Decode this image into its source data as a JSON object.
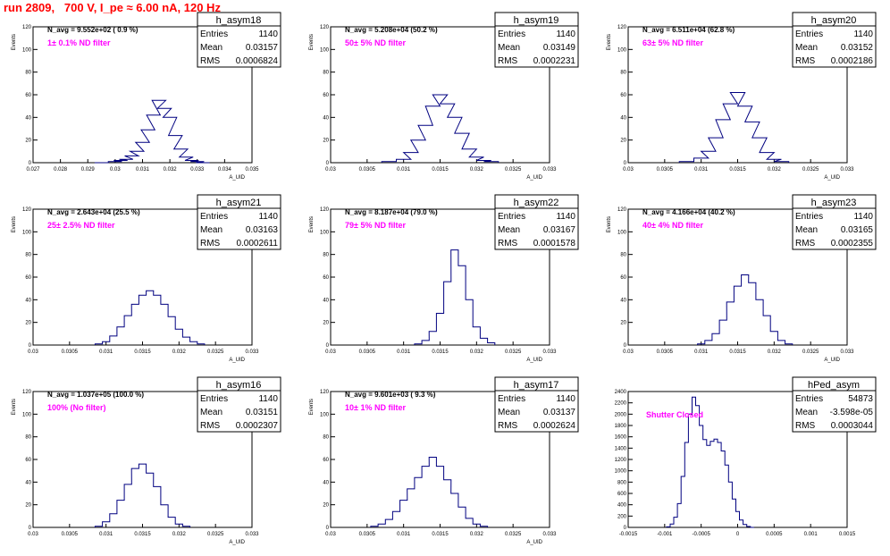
{
  "header": {
    "title": "run 2809,   700 V, I_pe ≈ 6.00 nA, 120 Hz"
  },
  "colors": {
    "title": "#ff0000",
    "histogram": "#000080",
    "annotation": "#ff00ff",
    "axis": "#000000"
  },
  "chart_data": [
    {
      "type": "histogram",
      "name": "h_asym18",
      "stats": {
        "entries_label": "Entries",
        "entries": "1140",
        "mean_label": "Mean",
        "mean": "0.03157",
        "rms_label": "RMS",
        "rms": "0.0006824"
      },
      "navg": "N_avg = 9.552e+02 ( 0.9 %)",
      "note": "1± 0.1% ND filter",
      "ylabel": "Events",
      "xlabel": "A_UID",
      "xlim": [
        0.027,
        0.035
      ],
      "ylim": [
        0,
        120
      ],
      "xticks": [
        "0.027",
        "0.028",
        "0.029",
        "0.03",
        "0.031",
        "0.032",
        "0.033",
        "0.034",
        "0.035"
      ],
      "yticks": [
        "0",
        "20",
        "40",
        "60",
        "80",
        "100",
        "120"
      ],
      "bins": [
        [
          0.0295,
          0
        ],
        [
          0.03,
          1
        ],
        [
          0.0302,
          2
        ],
        [
          0.0304,
          3
        ],
        [
          0.0306,
          6
        ],
        [
          0.0308,
          10
        ],
        [
          0.031,
          18
        ],
        [
          0.0312,
          29
        ],
        [
          0.0314,
          42
        ],
        [
          0.0316,
          55
        ],
        [
          0.0318,
          48
        ],
        [
          0.032,
          40
        ],
        [
          0.0322,
          24
        ],
        [
          0.0324,
          12
        ],
        [
          0.0326,
          5
        ],
        [
          0.0328,
          2
        ],
        [
          0.033,
          1
        ],
        [
          0.0332,
          0
        ]
      ]
    },
    {
      "type": "histogram",
      "name": "h_asym19",
      "stats": {
        "entries_label": "Entries",
        "entries": "1140",
        "mean_label": "Mean",
        "mean": "0.03149",
        "rms_label": "RMS",
        "rms": "0.0002231"
      },
      "navg": "N_avg = 5.208e+04 (50.2 %)",
      "note": "50± 5% ND filter",
      "ylabel": "Events",
      "xlabel": "A_UID",
      "xlim": [
        0.03,
        0.033
      ],
      "ylim": [
        0,
        120
      ],
      "xticks": [
        "0.03",
        "0.0305",
        "0.031",
        "0.0315",
        "0.032",
        "0.0325",
        "0.033"
      ],
      "yticks": [
        "0",
        "20",
        "40",
        "60",
        "80",
        "100",
        "120"
      ],
      "bins": [
        [
          0.0308,
          1
        ],
        [
          0.031,
          3
        ],
        [
          0.0311,
          9
        ],
        [
          0.0312,
          20
        ],
        [
          0.0313,
          33
        ],
        [
          0.0314,
          50
        ],
        [
          0.0315,
          60
        ],
        [
          0.0316,
          52
        ],
        [
          0.0317,
          40
        ],
        [
          0.0318,
          26
        ],
        [
          0.0319,
          12
        ],
        [
          0.032,
          5
        ],
        [
          0.0321,
          2
        ],
        [
          0.0322,
          1
        ]
      ]
    },
    {
      "type": "histogram",
      "name": "h_asym20",
      "stats": {
        "entries_label": "Entries",
        "entries": "1140",
        "mean_label": "Mean",
        "mean": "0.03152",
        "rms_label": "RMS",
        "rms": "0.0002186"
      },
      "navg": "N_avg = 6.511e+04 (62.8 %)",
      "note": "63± 5% ND filter",
      "ylabel": "Events",
      "xlabel": "A_UID",
      "xlim": [
        0.03,
        0.033
      ],
      "ylim": [
        0,
        120
      ],
      "xticks": [
        "0.03",
        "0.0305",
        "0.031",
        "0.0315",
        "0.032",
        "0.0325",
        "0.033"
      ],
      "yticks": [
        "0",
        "20",
        "40",
        "60",
        "80",
        "100",
        "120"
      ],
      "bins": [
        [
          0.0308,
          1
        ],
        [
          0.031,
          4
        ],
        [
          0.0311,
          10
        ],
        [
          0.0312,
          22
        ],
        [
          0.0313,
          38
        ],
        [
          0.0314,
          52
        ],
        [
          0.0315,
          62
        ],
        [
          0.0316,
          50
        ],
        [
          0.0317,
          36
        ],
        [
          0.0318,
          22
        ],
        [
          0.0319,
          9
        ],
        [
          0.032,
          3
        ],
        [
          0.0321,
          1
        ]
      ]
    },
    {
      "type": "histogram",
      "name": "h_asym21",
      "stats": {
        "entries_label": "Entries",
        "entries": "1140",
        "mean_label": "Mean",
        "mean": "0.03163",
        "rms_label": "RMS",
        "rms": "0.0002611"
      },
      "navg": "N_avg = 2.643e+04 (25.5 %)",
      "note": "25± 2.5% ND filter",
      "ylabel": "Events",
      "xlabel": "A_UID",
      "xlim": [
        0.03,
        0.033
      ],
      "ylim": [
        0,
        120
      ],
      "xticks": [
        "0.03",
        "0.0305",
        "0.031",
        "0.0315",
        "0.032",
        "0.0325",
        "0.033"
      ],
      "yticks": [
        "0",
        "20",
        "40",
        "60",
        "80",
        "100",
        "120"
      ],
      "bins": [
        [
          0.0309,
          1
        ],
        [
          0.031,
          3
        ],
        [
          0.0311,
          8
        ],
        [
          0.0312,
          16
        ],
        [
          0.0313,
          26
        ],
        [
          0.0314,
          36
        ],
        [
          0.0315,
          44
        ],
        [
          0.0316,
          48
        ],
        [
          0.0317,
          44
        ],
        [
          0.0318,
          36
        ],
        [
          0.0319,
          25
        ],
        [
          0.032,
          14
        ],
        [
          0.0321,
          7
        ],
        [
          0.0322,
          3
        ],
        [
          0.0323,
          1
        ]
      ]
    },
    {
      "type": "histogram",
      "name": "h_asym22",
      "stats": {
        "entries_label": "Entries",
        "entries": "1140",
        "mean_label": "Mean",
        "mean": "0.03167",
        "rms_label": "RMS",
        "rms": "0.0001578"
      },
      "navg": "N_avg = 8.187e+04 (79.0 %)",
      "note": "79± 5% ND filter",
      "ylabel": "Events",
      "xlabel": "A_UID",
      "xlim": [
        0.03,
        0.033
      ],
      "ylim": [
        0,
        120
      ],
      "xticks": [
        "0.03",
        "0.0305",
        "0.031",
        "0.0315",
        "0.032",
        "0.0325",
        "0.033"
      ],
      "yticks": [
        "0",
        "20",
        "40",
        "60",
        "80",
        "100",
        "120"
      ],
      "bins": [
        [
          0.0312,
          1
        ],
        [
          0.0313,
          4
        ],
        [
          0.0314,
          12
        ],
        [
          0.0315,
          28
        ],
        [
          0.0316,
          56
        ],
        [
          0.0317,
          84
        ],
        [
          0.0318,
          70
        ],
        [
          0.0319,
          40
        ],
        [
          0.032,
          16
        ],
        [
          0.0321,
          6
        ],
        [
          0.0322,
          2
        ]
      ]
    },
    {
      "type": "histogram",
      "name": "h_asym23",
      "stats": {
        "entries_label": "Entries",
        "entries": "1140",
        "mean_label": "Mean",
        "mean": "0.03165",
        "rms_label": "RMS",
        "rms": "0.0002355"
      },
      "navg": "N_avg = 4.166e+04 (40.2 %)",
      "note": "40± 4% ND filter",
      "ylabel": "Events",
      "xlabel": "A_UID",
      "xlim": [
        0.03,
        0.033
      ],
      "ylim": [
        0,
        120
      ],
      "xticks": [
        "0.03",
        "0.0305",
        "0.031",
        "0.0315",
        "0.032",
        "0.0325",
        "0.033"
      ],
      "yticks": [
        "0",
        "20",
        "40",
        "60",
        "80",
        "100",
        "120"
      ],
      "bins": [
        [
          0.031,
          1
        ],
        [
          0.0311,
          4
        ],
        [
          0.0312,
          10
        ],
        [
          0.0313,
          22
        ],
        [
          0.0314,
          38
        ],
        [
          0.0315,
          52
        ],
        [
          0.0316,
          62
        ],
        [
          0.0317,
          55
        ],
        [
          0.0318,
          40
        ],
        [
          0.0319,
          26
        ],
        [
          0.032,
          12
        ],
        [
          0.0321,
          4
        ],
        [
          0.0322,
          1
        ]
      ]
    },
    {
      "type": "histogram",
      "name": "h_asym16",
      "stats": {
        "entries_label": "Entries",
        "entries": "1140",
        "mean_label": "Mean",
        "mean": "0.03151",
        "rms_label": "RMS",
        "rms": "0.0002307"
      },
      "navg": "N_avg = 1.037e+05 (100.0 %)",
      "note": "100% (No filter)",
      "ylabel": "Events",
      "xlabel": "A_UID",
      "xlim": [
        0.03,
        0.033
      ],
      "ylim": [
        0,
        120
      ],
      "xticks": [
        "0.03",
        "0.0305",
        "0.031",
        "0.0315",
        "0.032",
        "0.0325",
        "0.033"
      ],
      "yticks": [
        "0",
        "20",
        "40",
        "60",
        "80",
        "100",
        "120"
      ],
      "bins": [
        [
          0.0309,
          1
        ],
        [
          0.031,
          5
        ],
        [
          0.0311,
          12
        ],
        [
          0.0312,
          24
        ],
        [
          0.0313,
          38
        ],
        [
          0.0314,
          52
        ],
        [
          0.0315,
          56
        ],
        [
          0.0316,
          48
        ],
        [
          0.0317,
          36
        ],
        [
          0.0318,
          20
        ],
        [
          0.0319,
          9
        ],
        [
          0.032,
          3
        ],
        [
          0.0321,
          1
        ]
      ]
    },
    {
      "type": "histogram",
      "name": "h_asym17",
      "stats": {
        "entries_label": "Entries",
        "entries": "1140",
        "mean_label": "Mean",
        "mean": "0.03137",
        "rms_label": "RMS",
        "rms": "0.0002624"
      },
      "navg": "N_avg = 9.601e+03 ( 9.3 %)",
      "note": "10± 1% ND filter",
      "ylabel": "Events",
      "xlabel": "A_UID",
      "xlim": [
        0.03,
        0.033
      ],
      "ylim": [
        0,
        120
      ],
      "xticks": [
        "0.03",
        "0.0305",
        "0.031",
        "0.0315",
        "0.032",
        "0.0325",
        "0.033"
      ],
      "yticks": [
        "0",
        "20",
        "40",
        "60",
        "80",
        "100",
        "120"
      ],
      "bins": [
        [
          0.0306,
          1
        ],
        [
          0.0307,
          3
        ],
        [
          0.0308,
          7
        ],
        [
          0.0309,
          14
        ],
        [
          0.031,
          24
        ],
        [
          0.0311,
          34
        ],
        [
          0.0312,
          44
        ],
        [
          0.0313,
          54
        ],
        [
          0.0314,
          62
        ],
        [
          0.0315,
          54
        ],
        [
          0.0316,
          42
        ],
        [
          0.0317,
          30
        ],
        [
          0.0318,
          18
        ],
        [
          0.0319,
          8
        ],
        [
          0.032,
          3
        ],
        [
          0.0321,
          1
        ]
      ]
    },
    {
      "type": "histogram",
      "name": "hPed_asym",
      "stats": {
        "entries_label": "Entries",
        "entries": "54873",
        "mean_label": "Mean",
        "mean": "-3.598e-05",
        "rms_label": "RMS",
        "rms": "0.0003044"
      },
      "navg": "",
      "note": "Shutter Closed",
      "ylabel": "",
      "xlabel": "",
      "xlim": [
        -0.0015,
        0.0015
      ],
      "ylim": [
        0,
        2400
      ],
      "xticks": [
        "-0.0015",
        "-0.001",
        "-0.0005",
        "0",
        "0.0005",
        "0.001",
        "0.0015"
      ],
      "yticks": [
        "0",
        "200",
        "400",
        "600",
        "800",
        "1000",
        "1200",
        "1400",
        "1600",
        "1800",
        "2000",
        "2200",
        "2400"
      ],
      "bins": [
        [
          -0.00095,
          10
        ],
        [
          -0.0009,
          60
        ],
        [
          -0.00085,
          180
        ],
        [
          -0.0008,
          420
        ],
        [
          -0.00075,
          900
        ],
        [
          -0.0007,
          1500
        ],
        [
          -0.00065,
          2000
        ],
        [
          -0.0006,
          2300
        ],
        [
          -0.00055,
          2150
        ],
        [
          -0.0005,
          1800
        ],
        [
          -0.00045,
          1550
        ],
        [
          -0.0004,
          1450
        ],
        [
          -0.00035,
          1520
        ],
        [
          -0.0003,
          1560
        ],
        [
          -0.00025,
          1500
        ],
        [
          -0.0002,
          1350
        ],
        [
          -0.00015,
          1100
        ],
        [
          -0.0001,
          800
        ],
        [
          -5e-05,
          500
        ],
        [
          0,
          280
        ],
        [
          5e-05,
          130
        ],
        [
          0.0001,
          50
        ],
        [
          0.00015,
          15
        ],
        [
          0.0002,
          0
        ]
      ]
    }
  ]
}
